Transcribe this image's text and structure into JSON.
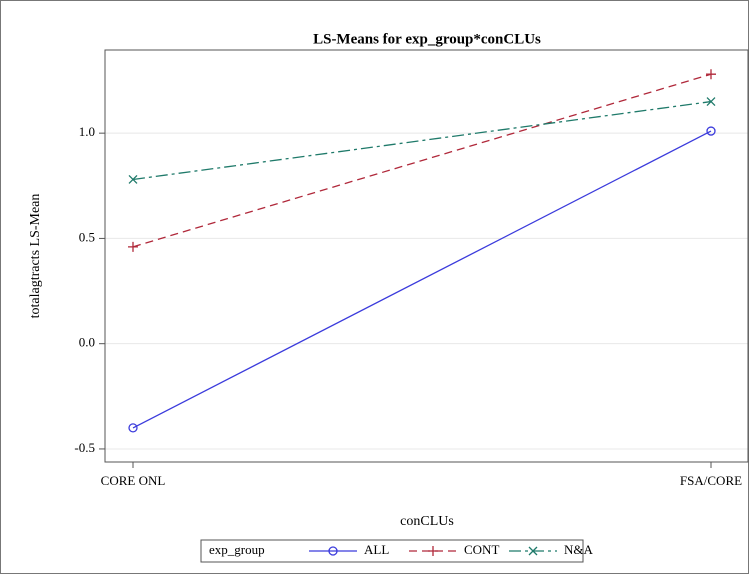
{
  "chart_data": {
    "type": "line",
    "title": "LS-Means for exp_group*conCLUs",
    "x_label": "conCLUs",
    "y_label": "totalagtracts LS-Mean",
    "categories": [
      "CORE ONL",
      "FSA/CORE"
    ],
    "series": [
      {
        "name": "ALL",
        "color": "#3b3bdc",
        "marker": "circle",
        "dash": "solid",
        "values": [
          -0.4,
          1.01
        ]
      },
      {
        "name": "CONT",
        "color": "#b0283a",
        "marker": "plus",
        "dash": "dash",
        "values": [
          0.46,
          1.28
        ]
      },
      {
        "name": "N&A",
        "color": "#1f7a6a",
        "marker": "x",
        "dash": "dashdot",
        "values": [
          0.78,
          1.15
        ]
      }
    ],
    "ylim": [
      -0.562,
      1.395
    ],
    "yticks": [
      {
        "value": -0.5,
        "label": "-0.5"
      },
      {
        "value": 0,
        "label": "0.0"
      },
      {
        "value": 0.5,
        "label": "0.5"
      },
      {
        "value": 1,
        "label": "1.0"
      }
    ],
    "grid": true,
    "legend_title": "exp_group",
    "legend_position": "bottom"
  }
}
